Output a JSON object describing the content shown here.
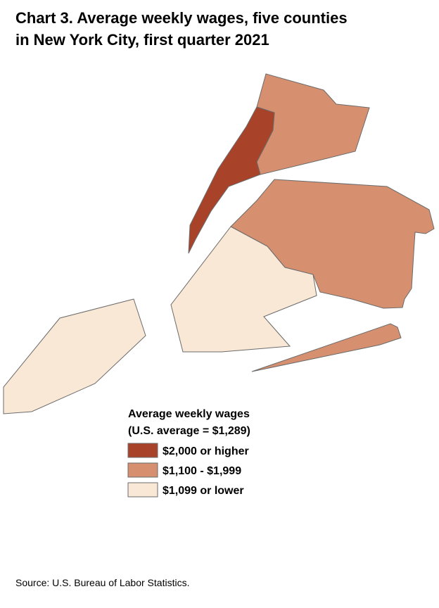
{
  "header": {
    "title_lines": [
      "Chart 3. Average weekly wages, five counties",
      "in New York City, first quarter 2021"
    ]
  },
  "legend": {
    "title_lines": [
      "Average weekly wages",
      "(U.S. average = $1,289)"
    ],
    "items": [
      {
        "label": "$2,000 or higher",
        "color": "#a8432a"
      },
      {
        "label": "$1,100 - $1,999",
        "color": "#d69070"
      },
      {
        "label": "$1,099 or lower",
        "color": "#f9e8d6"
      }
    ]
  },
  "source": "Source: U.S. Bureau of Labor Statistics."
}
